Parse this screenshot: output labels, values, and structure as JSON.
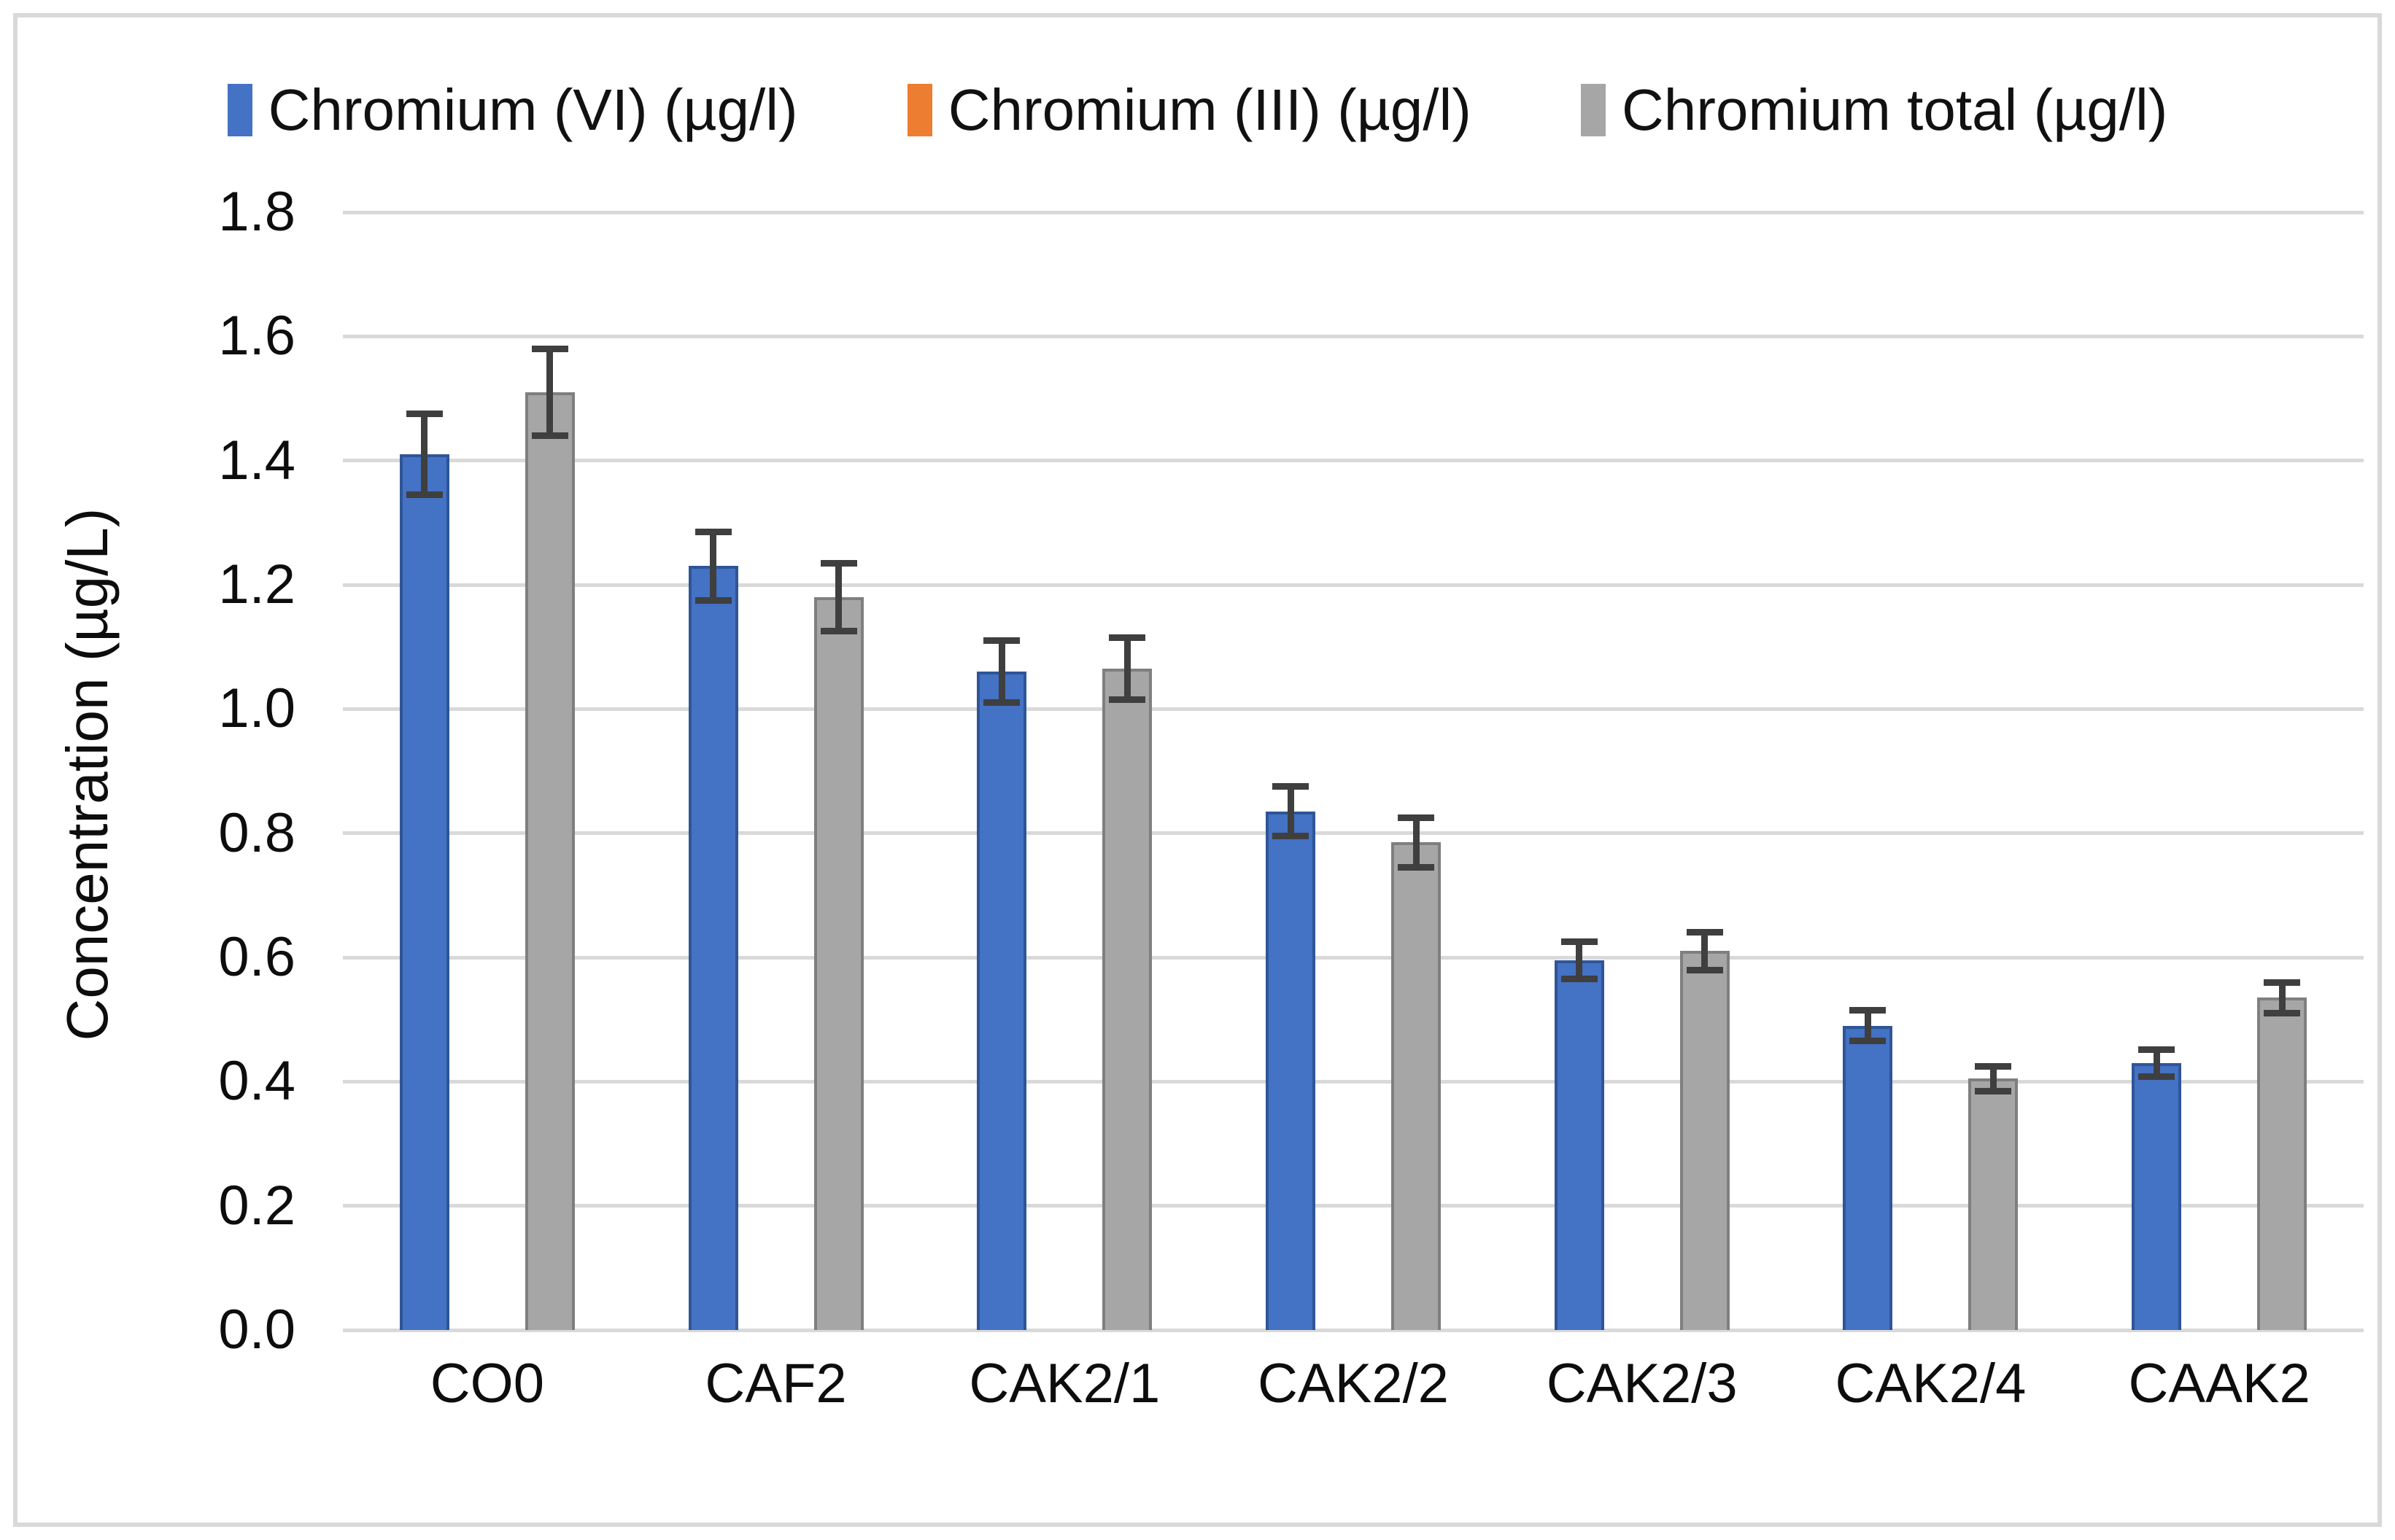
{
  "chart_data": {
    "type": "bar",
    "title": "",
    "categories": [
      "CO0",
      "CAF2",
      "CAK2/1",
      "CAK2/2",
      "CAK2/3",
      "CAK2/4",
      "CAAK2"
    ],
    "series": [
      {
        "name": "Chromium (VI) (µg/l)",
        "color": "#4472C4",
        "border_color": "#2F5597",
        "values": [
          1.41,
          1.23,
          1.06,
          0.835,
          0.595,
          0.49,
          0.43
        ],
        "errors": [
          0.065,
          0.055,
          0.05,
          0.04,
          0.03,
          0.025,
          0.022
        ]
      },
      {
        "name": "Chromium (III) (µg/l)",
        "color": "#ED7D31",
        "border_color": "#C55A11",
        "values": [
          0,
          0,
          0,
          0,
          0,
          0,
          0
        ],
        "errors": [
          0,
          0,
          0,
          0,
          0,
          0,
          0
        ]
      },
      {
        "name": "Chromium total (µg/l)",
        "color": "#A6A6A6",
        "border_color": "#7F7F7F",
        "values": [
          1.51,
          1.18,
          1.065,
          0.785,
          0.61,
          0.405,
          0.535
        ],
        "errors": [
          0.07,
          0.055,
          0.05,
          0.04,
          0.03,
          0.02,
          0.025
        ]
      }
    ],
    "xlabel": "",
    "ylabel": "Concentration (µg/L)",
    "ylim": [
      0,
      1.8
    ],
    "ytick_step": 0.2,
    "yticks": [
      "0.0",
      "0.2",
      "0.4",
      "0.6",
      "0.8",
      "1.0",
      "1.2",
      "1.4",
      "1.6",
      "1.8"
    ],
    "grid": true,
    "legend_position": "top",
    "error_bar_color": "#3F3F3F",
    "gridline_color": "#D9D9D9"
  }
}
